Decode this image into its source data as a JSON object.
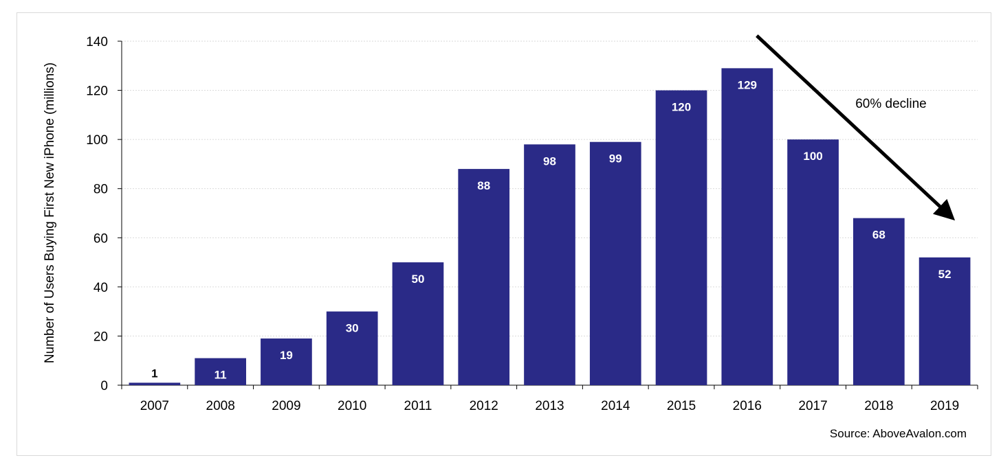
{
  "chart_data": {
    "type": "bar",
    "categories": [
      "2007",
      "2008",
      "2009",
      "2010",
      "2011",
      "2012",
      "2013",
      "2014",
      "2015",
      "2016",
      "2017",
      "2018",
      "2019"
    ],
    "values": [
      1,
      11,
      19,
      30,
      50,
      88,
      98,
      99,
      120,
      129,
      100,
      68,
      52
    ],
    "data_labels": [
      "1",
      "11",
      "19",
      "30",
      "50",
      "88",
      "98",
      "99",
      "120",
      "129",
      "100",
      "68",
      "52"
    ],
    "title": "",
    "xlabel": "",
    "ylabel": "Number of Users Buying First New iPhone (millions)",
    "ylim": [
      0,
      140
    ],
    "yticks": [
      0,
      20,
      40,
      60,
      80,
      100,
      120,
      140
    ],
    "grid": true,
    "legend": "none",
    "bar_color": "#2a2a87",
    "annotation": {
      "text": "60% decline",
      "arrow_from_category": "2016",
      "arrow_to_category": "2019"
    }
  },
  "source": "Source: AboveAvalon.com"
}
